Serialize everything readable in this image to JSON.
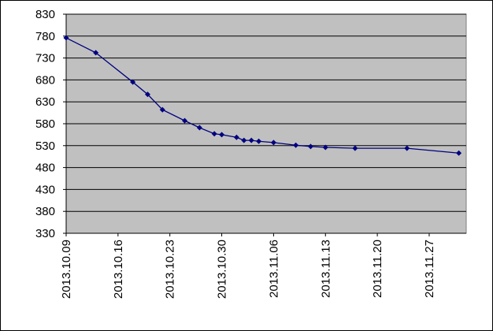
{
  "chart_data": {
    "type": "line",
    "x": [
      "2013.10.09",
      "2013.10.13",
      "2013.10.18",
      "2013.10.20",
      "2013.10.22",
      "2013.10.25",
      "2013.10.27",
      "2013.10.29",
      "2013.10.30",
      "2013.11.01",
      "2013.11.02",
      "2013.11.03",
      "2013.11.04",
      "2013.11.06",
      "2013.11.09",
      "2013.11.11",
      "2013.11.13",
      "2013.11.17",
      "2013.11.24",
      "2013.12.01"
    ],
    "series": [
      {
        "name": "value",
        "color": "#000080",
        "values": [
          776,
          742,
          675,
          647,
          612,
          587,
          571,
          557,
          555,
          549,
          542,
          542,
          540,
          537,
          531,
          528,
          526,
          524,
          524,
          513
        ]
      }
    ],
    "xlim": [
      "2013.10.09",
      "2013.12.02"
    ],
    "xticks": [
      "2013.10.09",
      "2013.10.16",
      "2013.10.23",
      "2013.10.30",
      "2013.11.06",
      "2013.11.13",
      "2013.11.20",
      "2013.11.27"
    ],
    "ylim": [
      330,
      830
    ],
    "yticks": [
      330,
      380,
      430,
      480,
      530,
      580,
      630,
      680,
      730,
      780,
      830
    ],
    "grid": true
  }
}
